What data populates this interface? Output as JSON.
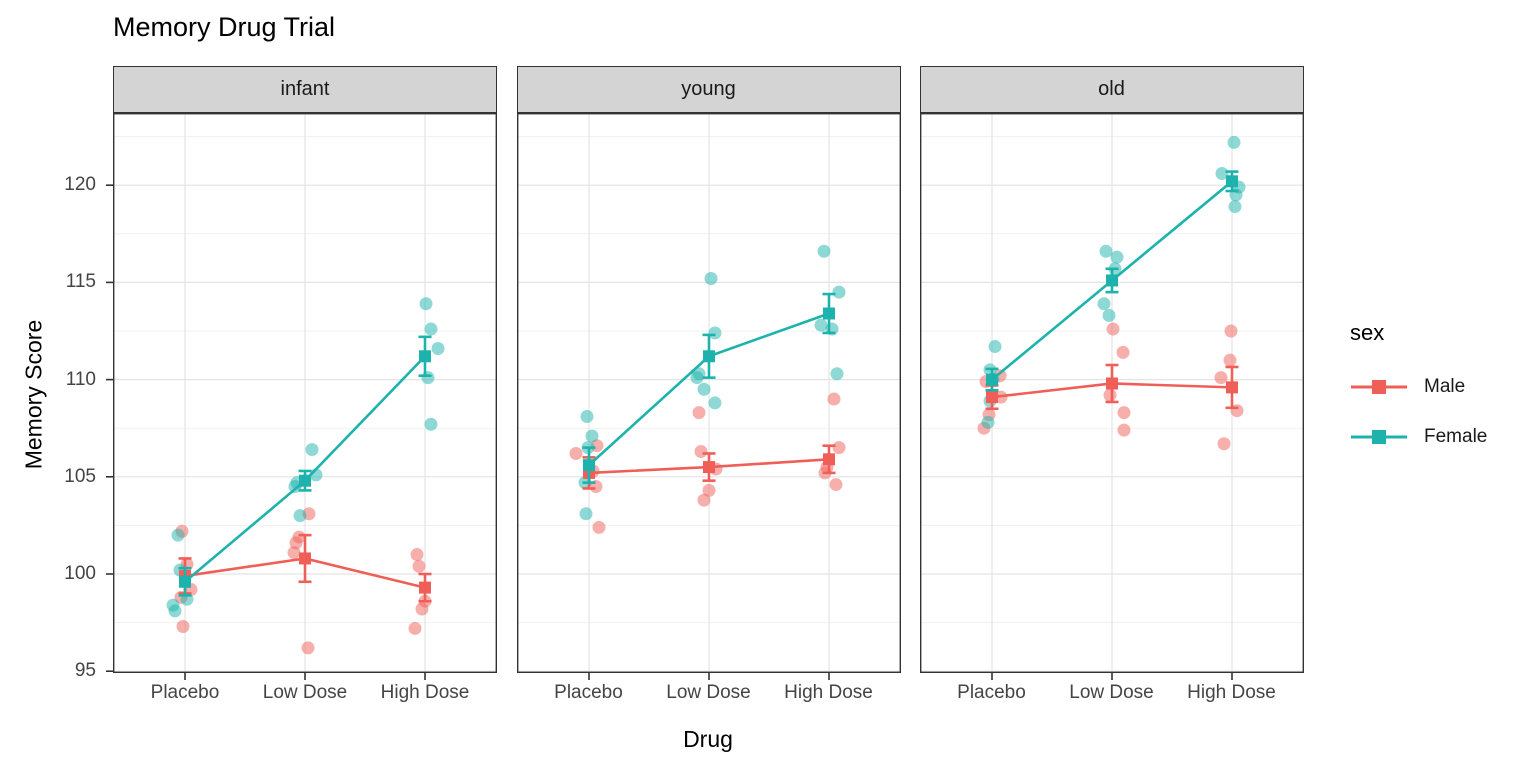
{
  "title": "Memory Drug Trial",
  "y_axis": {
    "label": "Memory Score",
    "ticks": [
      95,
      100,
      105,
      110,
      115,
      120
    ],
    "minor_ticks": [
      97.5,
      102.5,
      107.5,
      112.5,
      117.5,
      122.5
    ]
  },
  "x_axis": {
    "label": "Drug",
    "categories": [
      "Placebo",
      "Low Dose",
      "High Dose"
    ]
  },
  "legend": {
    "title": "sex",
    "entries": [
      {
        "label": "Male",
        "color": "#EF5F58"
      },
      {
        "label": "Female",
        "color": "#1DB3AC"
      }
    ]
  },
  "colors": {
    "male": "#EF5F58",
    "female": "#1DB3AC",
    "strip_bg": "#d4d4d4",
    "panel_border": "#333333",
    "grid_major": "#e4e4e4",
    "grid_minor": "#f1f1f1",
    "axis_text": "#444444"
  },
  "chart_data": {
    "type": "line",
    "title": "Memory Drug Trial",
    "xlabel": "Drug",
    "ylabel": "Memory Score",
    "ylim": [
      93.8,
      123.7
    ],
    "grid": "on",
    "legend_position": "right",
    "categories": [
      "Placebo",
      "Low Dose",
      "High Dose"
    ],
    "description": "Faceted interaction plot: group means (squares) with SE error bars and connecting lines, plus jittered individual points (semi-transparent).",
    "facets": [
      {
        "name": "infant",
        "series": [
          {
            "name": "Male",
            "means": [
              99.9,
              100.8,
              99.3
            ],
            "se": [
              0.9,
              1.2,
              0.7
            ],
            "points": [
              [
                [
                  102.2,
                  -3
                ],
                [
                  100.5,
                  2
                ],
                [
                  99.2,
                  6
                ],
                [
                  98.8,
                  -4
                ],
                [
                  97.3,
                  -2
                ]
              ],
              [
                [
                  103.1,
                  4
                ],
                [
                  101.9,
                  -6
                ],
                [
                  101.6,
                  -9
                ],
                [
                  101.1,
                  -11
                ],
                [
                  96.2,
                  3
                ]
              ],
              [
                [
                  101.0,
                  -8
                ],
                [
                  100.4,
                  -6
                ],
                [
                  98.6,
                  0
                ],
                [
                  98.2,
                  -3
                ],
                [
                  97.2,
                  -10
                ]
              ]
            ]
          },
          {
            "name": "Female",
            "means": [
              99.6,
              104.8,
              111.2
            ],
            "se": [
              0.7,
              0.5,
              1.0
            ],
            "points": [
              [
                [
                  102.0,
                  -7
                ],
                [
                  100.2,
                  -5
                ],
                [
                  98.7,
                  2
                ],
                [
                  98.4,
                  -12
                ],
                [
                  98.1,
                  -10
                ]
              ],
              [
                [
                  106.4,
                  7
                ],
                [
                  105.1,
                  11
                ],
                [
                  104.7,
                  -8
                ],
                [
                  104.5,
                  -10
                ],
                [
                  103.0,
                  -5
                ]
              ],
              [
                [
                  113.9,
                  1
                ],
                [
                  112.6,
                  6
                ],
                [
                  111.6,
                  13
                ],
                [
                  110.1,
                  3
                ],
                [
                  107.7,
                  6
                ]
              ]
            ]
          }
        ]
      },
      {
        "name": "young",
        "series": [
          {
            "name": "Male",
            "means": [
              105.2,
              105.5,
              105.9
            ],
            "se": [
              0.8,
              0.7,
              0.7
            ],
            "points": [
              [
                [
                  106.6,
                  8
                ],
                [
                  106.2,
                  -13
                ],
                [
                  105.3,
                  4
                ],
                [
                  104.5,
                  7
                ],
                [
                  102.4,
                  10
                ]
              ],
              [
                [
                  108.3,
                  -10
                ],
                [
                  106.3,
                  -8
                ],
                [
                  105.4,
                  7
                ],
                [
                  104.3,
                  0
                ],
                [
                  103.8,
                  -5
                ]
              ],
              [
                [
                  109.0,
                  5
                ],
                [
                  106.5,
                  10
                ],
                [
                  105.5,
                  -2
                ],
                [
                  105.2,
                  -4
                ],
                [
                  104.6,
                  7
                ]
              ]
            ]
          },
          {
            "name": "Female",
            "means": [
              105.6,
              111.2,
              113.4
            ],
            "se": [
              0.9,
              1.1,
              1.0
            ],
            "points": [
              [
                [
                  108.1,
                  -2
                ],
                [
                  107.1,
                  3
                ],
                [
                  106.5,
                  -1
                ],
                [
                  104.7,
                  -4
                ],
                [
                  103.1,
                  -3
                ]
              ],
              [
                [
                  115.2,
                  2
                ],
                [
                  112.4,
                  6
                ],
                [
                  110.3,
                  -10
                ],
                [
                  110.1,
                  -12
                ],
                [
                  109.5,
                  -5
                ],
                [
                  108.8,
                  6
                ]
              ],
              [
                [
                  116.6,
                  -5
                ],
                [
                  114.5,
                  10
                ],
                [
                  112.8,
                  -8
                ],
                [
                  112.6,
                  3
                ],
                [
                  110.3,
                  8
                ]
              ]
            ]
          }
        ]
      },
      {
        "name": "old",
        "series": [
          {
            "name": "Male",
            "means": [
              109.1,
              109.8,
              109.6
            ],
            "se": [
              0.6,
              0.95,
              1.05
            ],
            "points": [
              [
                [
                  110.2,
                  8
                ],
                [
                  109.9,
                  -6
                ],
                [
                  109.1,
                  9
                ],
                [
                  108.2,
                  -3
                ],
                [
                  107.5,
                  -8
                ]
              ],
              [
                [
                  112.6,
                  1
                ],
                [
                  111.4,
                  11
                ],
                [
                  109.2,
                  -2
                ],
                [
                  108.3,
                  12
                ],
                [
                  107.4,
                  12
                ]
              ],
              [
                [
                  112.5,
                  -1
                ],
                [
                  111.0,
                  -2
                ],
                [
                  110.1,
                  -11
                ],
                [
                  108.4,
                  5
                ],
                [
                  106.7,
                  -8
                ]
              ]
            ]
          },
          {
            "name": "Female",
            "means": [
              110.0,
              115.1,
              120.2
            ],
            "se": [
              0.55,
              0.6,
              0.5
            ],
            "points": [
              [
                [
                  111.7,
                  3
                ],
                [
                  110.5,
                  -2
                ],
                [
                  110.0,
                  1
                ],
                [
                  108.9,
                  -2
                ],
                [
                  107.8,
                  -4
                ]
              ],
              [
                [
                  116.6,
                  -6
                ],
                [
                  116.3,
                  5
                ],
                [
                  115.7,
                  3
                ],
                [
                  113.9,
                  -8
                ],
                [
                  113.3,
                  -3
                ]
              ],
              [
                [
                  122.2,
                  2
                ],
                [
                  120.6,
                  -10
                ],
                [
                  119.9,
                  7
                ],
                [
                  119.5,
                  4
                ],
                [
                  118.9,
                  3
                ]
              ]
            ]
          }
        ]
      }
    ]
  }
}
